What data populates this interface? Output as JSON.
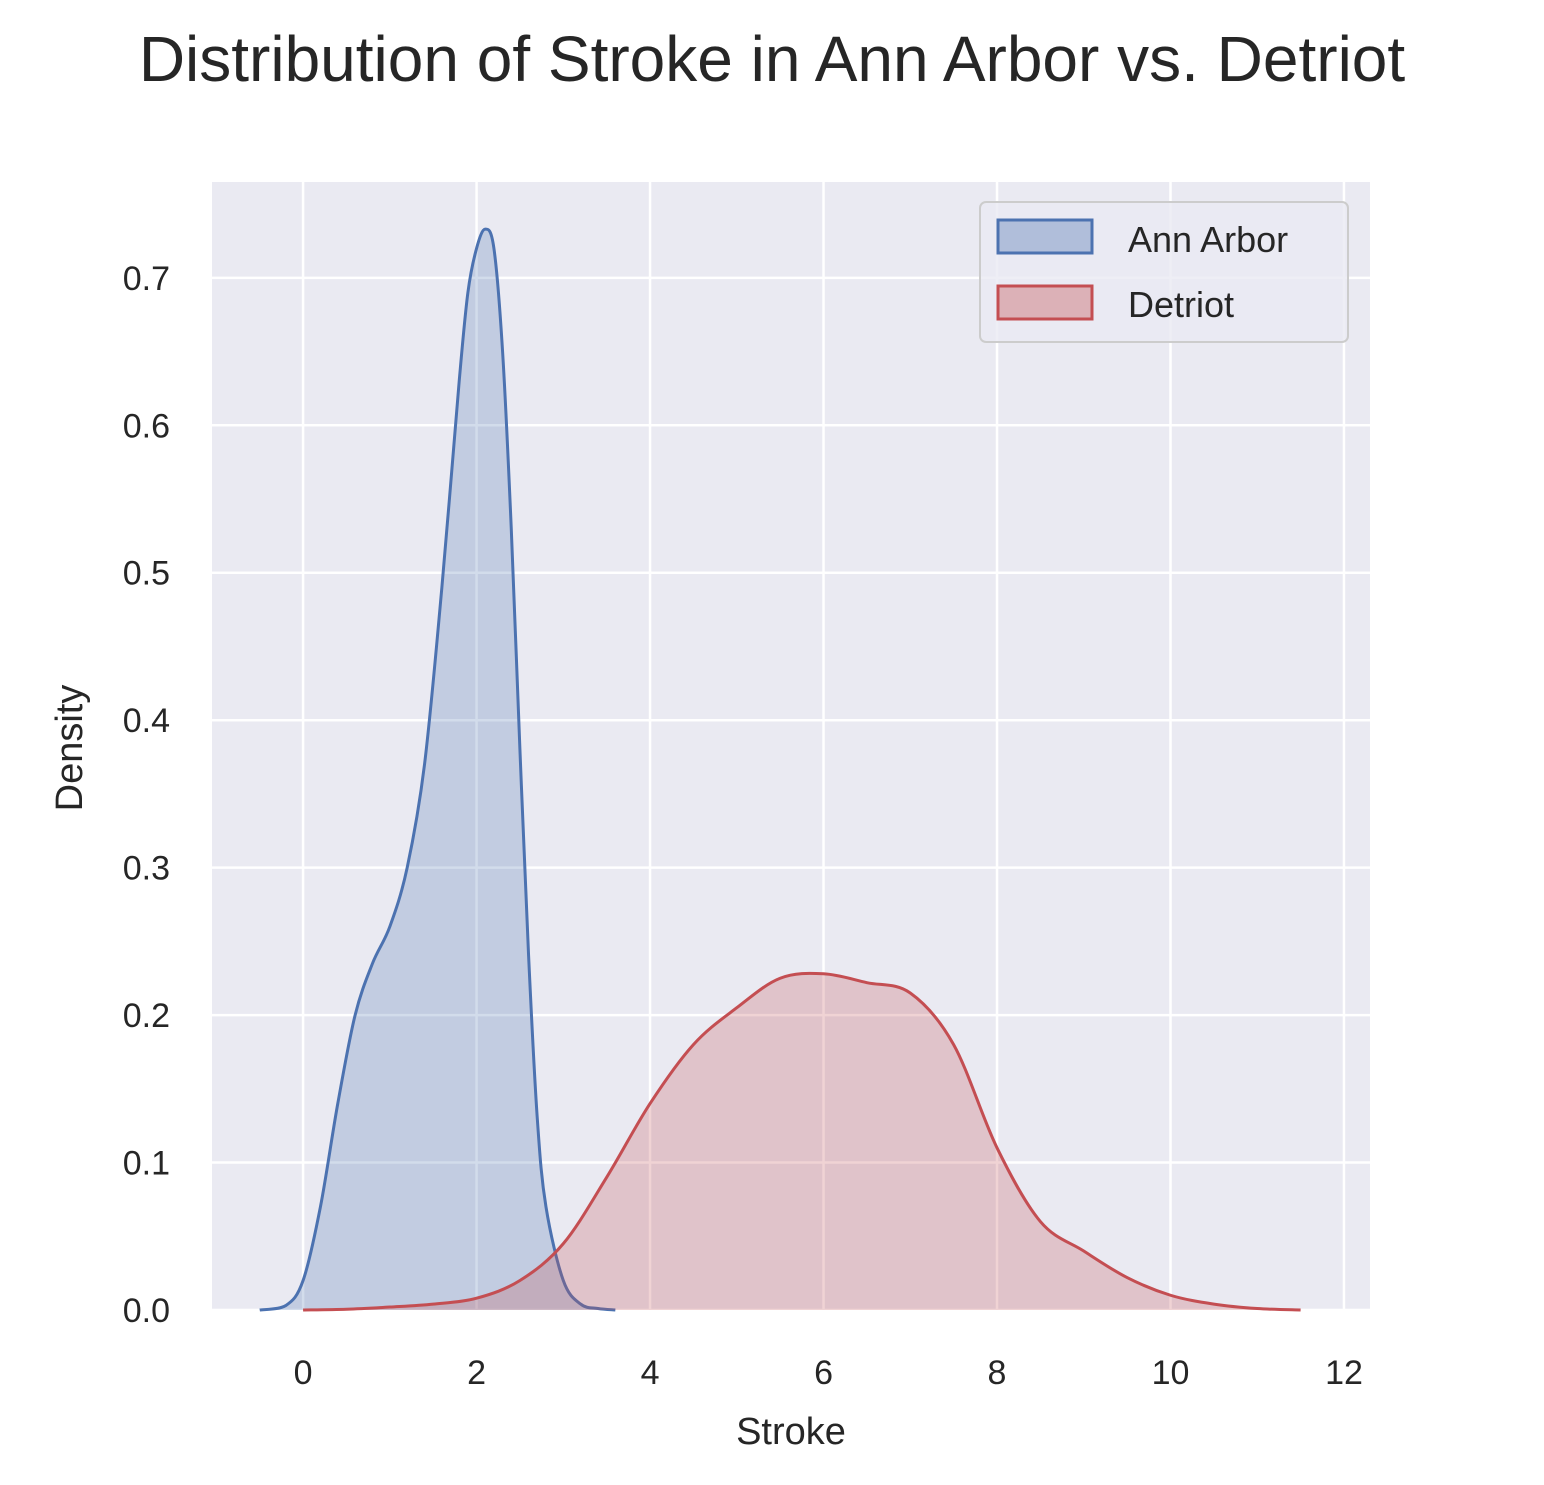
{
  "chart_data": {
    "type": "area",
    "title": "Distribution of Stroke in Ann Arbor vs. Detriot",
    "xlabel": "Stroke",
    "ylabel": "Density",
    "xlim": [
      -1.05,
      12.3
    ],
    "ylim": [
      0,
      0.765
    ],
    "x_ticks": [
      0,
      2,
      4,
      6,
      8,
      10,
      12
    ],
    "y_ticks": [
      0.0,
      0.1,
      0.2,
      0.3,
      0.4,
      0.5,
      0.6,
      0.7
    ],
    "x_tick_labels": [
      "0",
      "2",
      "4",
      "6",
      "8",
      "10",
      "12"
    ],
    "y_tick_labels": [
      "0.0",
      "0.1",
      "0.2",
      "0.3",
      "0.4",
      "0.5",
      "0.6",
      "0.7"
    ],
    "grid": true,
    "legend_position": "top-right",
    "background_color": "#eaeaf2",
    "series": [
      {
        "name": "Ann Arbor",
        "color": "#4c72b0",
        "fill": "#4c72b0",
        "fill_opacity": 0.25,
        "x": [
          -0.5,
          -0.2,
          0.0,
          0.2,
          0.4,
          0.6,
          0.8,
          1.0,
          1.2,
          1.4,
          1.6,
          1.8,
          1.9,
          2.0,
          2.1,
          2.2,
          2.3,
          2.4,
          2.5,
          2.6,
          2.7,
          2.8,
          3.0,
          3.2,
          3.4,
          3.6
        ],
        "y": [
          0.0,
          0.003,
          0.02,
          0.07,
          0.14,
          0.2,
          0.235,
          0.26,
          0.3,
          0.37,
          0.49,
          0.63,
          0.69,
          0.72,
          0.733,
          0.72,
          0.65,
          0.53,
          0.38,
          0.24,
          0.13,
          0.07,
          0.02,
          0.004,
          0.001,
          0.0
        ]
      },
      {
        "name": "Detriot",
        "color": "#c44e52",
        "fill": "#c44e52",
        "fill_opacity": 0.25,
        "x": [
          0.0,
          0.5,
          1.0,
          1.5,
          2.0,
          2.5,
          3.0,
          3.5,
          4.0,
          4.5,
          5.0,
          5.5,
          6.0,
          6.5,
          7.0,
          7.5,
          8.0,
          8.5,
          9.0,
          9.5,
          10.0,
          10.5,
          11.0,
          11.5
        ],
        "y": [
          0.0,
          0.0005,
          0.002,
          0.004,
          0.008,
          0.02,
          0.045,
          0.09,
          0.14,
          0.18,
          0.205,
          0.225,
          0.228,
          0.222,
          0.215,
          0.18,
          0.11,
          0.06,
          0.04,
          0.022,
          0.01,
          0.004,
          0.001,
          0.0
        ]
      }
    ]
  }
}
